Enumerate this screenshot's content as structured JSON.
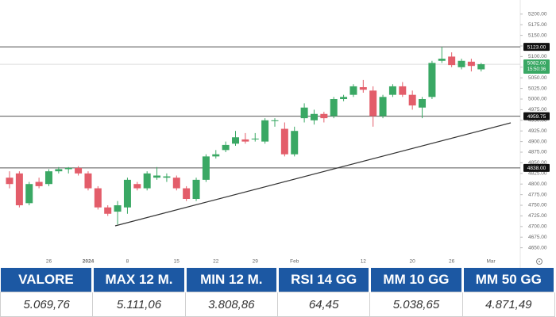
{
  "chart_data": {
    "type": "candlestick",
    "categories": [
      null,
      null,
      null,
      null,
      "26",
      null,
      null,
      null,
      "2024",
      null,
      null,
      null,
      "8",
      null,
      null,
      null,
      null,
      "15",
      null,
      null,
      null,
      "22",
      null,
      null,
      null,
      "29",
      null,
      null,
      null,
      "Feb",
      null,
      null,
      null,
      null,
      null,
      null,
      "12",
      null,
      null,
      null,
      null,
      "20",
      null,
      null,
      null,
      "26",
      null,
      null,
      null,
      "Mar"
    ],
    "open": [
      4815,
      4825,
      4755,
      4805,
      4800,
      4830,
      4835,
      4838,
      4825,
      4790,
      4745,
      4735,
      4745,
      4800,
      4790,
      4815,
      4815,
      4815,
      4790,
      4765,
      4810,
      4865,
      4880,
      4895,
      4905,
      4905,
      4900,
      4948,
      4930,
      4870,
      4955,
      4950,
      4965,
      4960,
      5000,
      5010,
      5028,
      5020,
      4960,
      5010,
      5030,
      5010,
      4980,
      5005,
      5090,
      5100,
      5075,
      5088,
      5070,
      null
    ],
    "high": [
      4830,
      4830,
      4805,
      4815,
      4835,
      4840,
      4840,
      4842,
      4830,
      4795,
      4750,
      4760,
      4815,
      4805,
      4830,
      4840,
      4825,
      4820,
      4795,
      4815,
      4870,
      4880,
      4900,
      4925,
      4920,
      4920,
      4955,
      4955,
      4945,
      4935,
      4990,
      4975,
      4970,
      5005,
      5010,
      5035,
      5045,
      5030,
      5010,
      5035,
      5040,
      5020,
      5005,
      5090,
      5123,
      5110,
      5095,
      5095,
      5085,
      null
    ],
    "low": [
      4790,
      4745,
      4750,
      4790,
      4795,
      4825,
      4825,
      4820,
      4785,
      4740,
      4725,
      4705,
      4730,
      4785,
      4785,
      4810,
      4805,
      4785,
      4760,
      4760,
      4805,
      4860,
      4875,
      4890,
      4895,
      4900,
      4895,
      4935,
      4865,
      4865,
      4945,
      4940,
      4945,
      4955,
      4995,
      5005,
      5015,
      4935,
      4955,
      5005,
      5005,
      4975,
      4955,
      5000,
      5085,
      5075,
      5070,
      5065,
      5065,
      null
    ],
    "close": [
      4800,
      4750,
      4800,
      4795,
      4830,
      4835,
      4838,
      4825,
      4790,
      4745,
      4730,
      4750,
      4810,
      4790,
      4825,
      4820,
      4818,
      4790,
      4765,
      4810,
      4865,
      4870,
      4892,
      4910,
      4900,
      4907,
      4950,
      4950,
      4870,
      4925,
      4980,
      4965,
      4955,
      5000,
      5005,
      5030,
      5022,
      4960,
      5005,
      5030,
      5010,
      4985,
      5000,
      5085,
      5095,
      5080,
      5090,
      5078,
      5082,
      null
    ],
    "up_color": "#3aa864",
    "down_color": "#e35d6a",
    "ylim": [
      4640,
      5222
    ],
    "yticks": [
      {
        "value": 5200,
        "label": "5200.00"
      },
      {
        "value": 5175,
        "label": "5175.00"
      },
      {
        "value": 5150,
        "label": "5150.00"
      },
      {
        "value": 5125,
        "label": "5125.00"
      },
      {
        "value": 5100,
        "label": "5100.00"
      },
      {
        "value": 5075,
        "label": "5075.00"
      },
      {
        "value": 5050,
        "label": "5050.00"
      },
      {
        "value": 5025,
        "label": "5025.00"
      },
      {
        "value": 5000,
        "label": "5000.00"
      },
      {
        "value": 4975,
        "label": "4975.00"
      },
      {
        "value": 4950,
        "label": "4950.00"
      },
      {
        "value": 4925,
        "label": "4925.00"
      },
      {
        "value": 4900,
        "label": "4900.00"
      },
      {
        "value": 4875,
        "label": "4875.00"
      },
      {
        "value": 4850,
        "label": "4850.00"
      },
      {
        "value": 4825,
        "label": "4825.00"
      },
      {
        "value": 4800,
        "label": "4800.00"
      },
      {
        "value": 4775,
        "label": "4775.00"
      },
      {
        "value": 4750,
        "label": "4750.00"
      },
      {
        "value": 4725,
        "label": "4725.00"
      },
      {
        "value": 4700,
        "label": "4700.00"
      },
      {
        "value": 4675,
        "label": "4675.00"
      },
      {
        "value": 4650,
        "label": "4650.00"
      }
    ],
    "levels": [
      {
        "value": 5123,
        "label": "5123.00"
      },
      {
        "value": 4959.75,
        "label": "4959.75"
      },
      {
        "value": 4838,
        "label": "4838.00"
      }
    ],
    "last_price": {
      "value": 5082,
      "label": "5082.00"
    },
    "countdown": "15:50:36"
  },
  "table": {
    "headers": [
      "VALORE",
      "MAX 12 M.",
      "MIN 12 M.",
      "RSI 14 GG",
      "MM 10 GG",
      "MM 50 GG"
    ],
    "rows": [
      [
        "5.069,76",
        "5.111,06",
        "3.808,86",
        "64,45",
        "5.038,65",
        "4.871,49"
      ]
    ]
  }
}
